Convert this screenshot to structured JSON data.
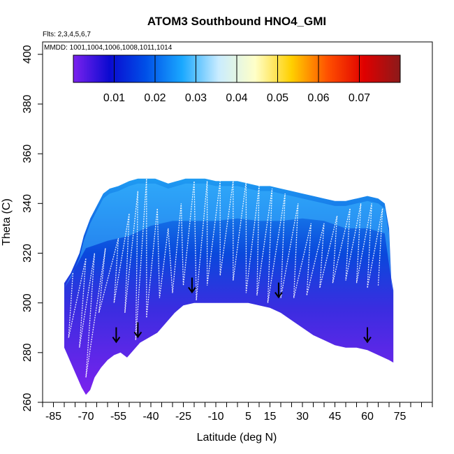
{
  "chart_data": {
    "type": "heatmap",
    "title": "ATOM3 Southbound HNO4_GMI",
    "flights_label": "Flts: 2,3,4,5,6,7",
    "mmdd_label": "MMDD: 1001,1004,1006,1008,1011,1014",
    "xlabel": "Latitude (deg N)",
    "ylabel": "Theta (C)",
    "xlim": [
      -90,
      90
    ],
    "ylim": [
      260,
      405
    ],
    "x_ticks": [
      -85,
      -70,
      -55,
      -40,
      -25,
      -10,
      5,
      15,
      30,
      45,
      60,
      75
    ],
    "x_tick_labels": [
      "-85",
      "-70",
      "-55",
      "-40",
      "-25",
      "-10",
      "5",
      "15",
      "30",
      "45",
      "60",
      "75"
    ],
    "y_ticks": [
      260,
      280,
      300,
      320,
      340,
      360,
      380,
      400
    ],
    "y_tick_labels": [
      "260",
      "280",
      "300",
      "320",
      "340",
      "360",
      "380",
      "400"
    ],
    "colorbar": {
      "min": 0.0,
      "max": 0.08,
      "ticks": [
        0.01,
        0.02,
        0.03,
        0.04,
        0.05,
        0.06,
        0.07
      ],
      "tick_labels": [
        "0.01",
        "0.02",
        "0.03",
        "0.04",
        "0.05",
        "0.06",
        "0.07"
      ],
      "colors": [
        "#7b22ee",
        "#0a0ad0",
        "#0050e8",
        "#1aa8ff",
        "#c9ecff",
        "#ffffc8",
        "#ffd000",
        "#ff5000",
        "#e00000",
        "#8b1a1a"
      ]
    },
    "domain_top": [
      [
        -80,
        308
      ],
      [
        -77,
        312
      ],
      [
        -75,
        316
      ],
      [
        -73,
        320
      ],
      [
        -71,
        327
      ],
      [
        -68,
        334
      ],
      [
        -65,
        339
      ],
      [
        -62,
        344
      ],
      [
        -59,
        346
      ],
      [
        -55,
        347
      ],
      [
        -50,
        349
      ],
      [
        -46,
        350
      ],
      [
        -42,
        350
      ],
      [
        -38,
        350
      ],
      [
        -35,
        349
      ],
      [
        -32,
        348
      ],
      [
        -28,
        349
      ],
      [
        -24,
        350
      ],
      [
        -20,
        350
      ],
      [
        -15,
        350
      ],
      [
        -10,
        349
      ],
      [
        -5,
        349
      ],
      [
        0,
        349
      ],
      [
        5,
        348
      ],
      [
        10,
        347
      ],
      [
        15,
        347
      ],
      [
        20,
        346
      ],
      [
        25,
        345
      ],
      [
        30,
        344
      ],
      [
        35,
        343
      ],
      [
        40,
        342
      ],
      [
        45,
        341
      ],
      [
        50,
        341
      ],
      [
        55,
        342
      ],
      [
        60,
        343
      ],
      [
        65,
        342
      ],
      [
        68,
        340
      ],
      [
        70,
        330
      ],
      [
        71,
        310
      ],
      [
        72,
        305
      ]
    ],
    "domain_bottom": [
      [
        -80,
        282
      ],
      [
        -77,
        276
      ],
      [
        -74,
        270
      ],
      [
        -72,
        266
      ],
      [
        -70,
        263
      ],
      [
        -68,
        265
      ],
      [
        -66,
        270
      ],
      [
        -63,
        274
      ],
      [
        -60,
        277
      ],
      [
        -57,
        279
      ],
      [
        -54,
        280
      ],
      [
        -51,
        278
      ],
      [
        -48,
        281
      ],
      [
        -45,
        284
      ],
      [
        -41,
        286
      ],
      [
        -37,
        288
      ],
      [
        -33,
        292
      ],
      [
        -29,
        296
      ],
      [
        -25,
        299
      ],
      [
        -20,
        300
      ],
      [
        -15,
        300
      ],
      [
        -10,
        300
      ],
      [
        -5,
        300
      ],
      [
        0,
        300
      ],
      [
        5,
        300
      ],
      [
        10,
        299
      ],
      [
        15,
        298
      ],
      [
        20,
        296
      ],
      [
        25,
        293
      ],
      [
        30,
        290
      ],
      [
        35,
        287
      ],
      [
        40,
        285
      ],
      [
        45,
        283
      ],
      [
        50,
        282
      ],
      [
        55,
        282
      ],
      [
        60,
        281
      ],
      [
        65,
        279
      ],
      [
        70,
        277
      ],
      [
        72,
        276
      ]
    ],
    "high_concentration_band": [
      [
        -70,
        322
      ],
      [
        -60,
        325
      ],
      [
        -50,
        327
      ],
      [
        -40,
        331
      ],
      [
        -30,
        333
      ],
      [
        -20,
        333
      ],
      [
        -10,
        333
      ],
      [
        0,
        334
      ],
      [
        10,
        333
      ],
      [
        20,
        333
      ],
      [
        30,
        334
      ],
      [
        40,
        333
      ],
      [
        50,
        330
      ],
      [
        60,
        330
      ],
      [
        68,
        328
      ]
    ],
    "flight_track_minima": [
      [
        -78,
        286
      ],
      [
        -73,
        282
      ],
      [
        -70,
        270
      ],
      [
        -64,
        296
      ],
      [
        -57,
        300
      ],
      [
        -52,
        296
      ],
      [
        -47,
        285
      ],
      [
        -42,
        294
      ],
      [
        -36,
        302
      ],
      [
        -30,
        304
      ],
      [
        -25,
        307
      ],
      [
        -19,
        301
      ],
      [
        -14,
        307
      ],
      [
        -8,
        311
      ],
      [
        -2,
        309
      ],
      [
        4,
        304
      ],
      [
        9,
        303
      ],
      [
        14,
        300
      ],
      [
        20,
        302
      ],
      [
        26,
        302
      ],
      [
        32,
        303
      ],
      [
        38,
        306
      ],
      [
        44,
        308
      ],
      [
        50,
        309
      ],
      [
        55,
        308
      ],
      [
        60,
        306
      ],
      [
        65,
        307
      ],
      [
        69,
        310
      ]
    ],
    "flight_track_maxima": [
      [
        -76,
        312
      ],
      [
        -70,
        318
      ],
      [
        -66,
        320
      ],
      [
        -61,
        322
      ],
      [
        -55,
        326
      ],
      [
        -50,
        336
      ],
      [
        -46,
        345
      ],
      [
        -42,
        350
      ],
      [
        -37,
        338
      ],
      [
        -32,
        330
      ],
      [
        -26,
        340
      ],
      [
        -20,
        349
      ],
      [
        -14,
        349
      ],
      [
        -8,
        349
      ],
      [
        -2,
        349
      ],
      [
        4,
        349
      ],
      [
        10,
        347
      ],
      [
        16,
        346
      ],
      [
        22,
        344
      ],
      [
        28,
        340
      ],
      [
        34,
        332
      ],
      [
        40,
        332
      ],
      [
        46,
        335
      ],
      [
        52,
        338
      ],
      [
        57,
        340
      ],
      [
        62,
        340
      ],
      [
        67,
        338
      ]
    ],
    "arrows": [
      [
        -56,
        284
      ],
      [
        -46,
        286
      ],
      [
        -21,
        304
      ],
      [
        19,
        302
      ],
      [
        60,
        284
      ]
    ]
  }
}
